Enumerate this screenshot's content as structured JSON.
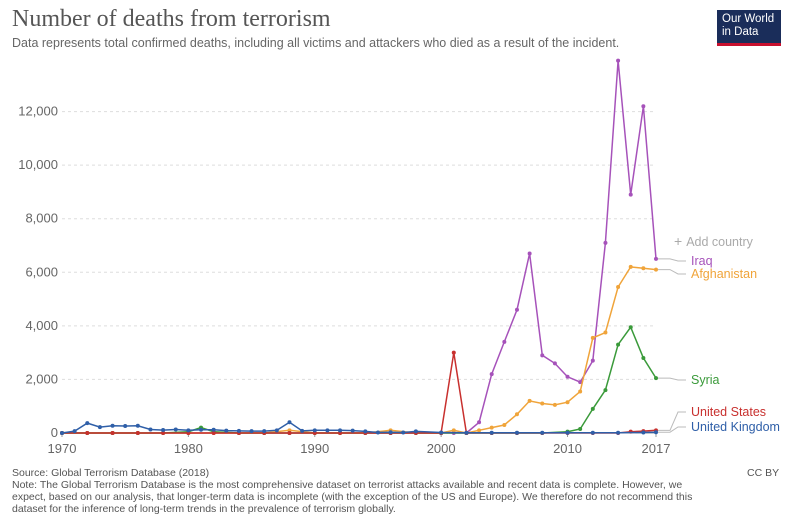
{
  "header": {
    "title": "Number of deaths from terrorism",
    "subtitle": "Data represents total confirmed deaths, including all victims and attackers who died as a result of the incident.",
    "logo_line1": "Our World",
    "logo_line2": "in Data"
  },
  "controls": {
    "add_country_icon": "plus-icon",
    "add_country_label": "Add country"
  },
  "footer": {
    "source": "Source: Global Terrorism Database (2018)",
    "note": "Note: The Global Terrorism Database is the most comprehensive dataset on terrorist attacks available and recent data is complete. However, we expect, based on our analysis, that longer-term data is incomplete (with the exception of the US and Europe). We therefore do not recommend this dataset for the inference of long-term trends in the prevalence of terrorism globally.",
    "license": "CC BY"
  },
  "chart_data": {
    "type": "line",
    "title": "Number of deaths from terrorism",
    "xlim": [
      1970,
      2017
    ],
    "ylim": [
      0,
      14000
    ],
    "x_ticks": [
      1970,
      1980,
      1990,
      2000,
      2010,
      2017
    ],
    "x_tick_labels": [
      "1970",
      "1980",
      "1990",
      "2000",
      "2010",
      "2017"
    ],
    "y_ticks": [
      0,
      2000,
      4000,
      6000,
      8000,
      10000,
      12000
    ],
    "y_tick_labels": [
      "0",
      "2,000",
      "4,000",
      "6,000",
      "8,000",
      "10,000",
      "12,000"
    ],
    "grid": "horizontal dashed",
    "legend": "right, end labels",
    "series": [
      {
        "name": "Iraq",
        "color": "#a652ba",
        "x": [
          1970,
          1972,
          1974,
          1976,
          1978,
          1980,
          1982,
          1984,
          1986,
          1988,
          1990,
          1992,
          1994,
          1996,
          1998,
          2000,
          2001,
          2002,
          2003,
          2004,
          2005,
          2006,
          2007,
          2008,
          2009,
          2010,
          2011,
          2012,
          2013,
          2014,
          2015,
          2016,
          2017
        ],
        "y": [
          0,
          0,
          0,
          0,
          0,
          0,
          0,
          0,
          0,
          0,
          0,
          0,
          0,
          0,
          0,
          0,
          0,
          0,
          400,
          2200,
          3400,
          4600,
          6700,
          2900,
          2600,
          2100,
          1900,
          2700,
          7100,
          13900,
          8900,
          12200,
          6500
        ]
      },
      {
        "name": "Afghanistan",
        "color": "#f0a43a",
        "x": [
          1970,
          1972,
          1974,
          1976,
          1978,
          1980,
          1982,
          1984,
          1986,
          1988,
          1990,
          1992,
          1994,
          1996,
          1998,
          2000,
          2001,
          2002,
          2003,
          2004,
          2005,
          2006,
          2007,
          2008,
          2009,
          2010,
          2011,
          2012,
          2013,
          2014,
          2015,
          2016,
          2017
        ],
        "y": [
          0,
          0,
          0,
          0,
          0,
          0,
          0,
          0,
          0,
          100,
          0,
          0,
          0,
          100,
          0,
          0,
          100,
          0,
          100,
          200,
          300,
          700,
          1200,
          1100,
          1050,
          1150,
          1550,
          3550,
          3750,
          5450,
          6200,
          6150,
          6100
        ]
      },
      {
        "name": "Syria",
        "color": "#3a9a3a",
        "x": [
          1970,
          1972,
          1974,
          1976,
          1978,
          1980,
          1981,
          1982,
          1984,
          1986,
          1988,
          1990,
          1992,
          1994,
          1996,
          1998,
          2000,
          2002,
          2004,
          2006,
          2008,
          2010,
          2011,
          2012,
          2013,
          2014,
          2015,
          2016,
          2017
        ],
        "y": [
          0,
          0,
          0,
          0,
          0,
          50,
          200,
          50,
          0,
          0,
          0,
          0,
          0,
          0,
          0,
          0,
          0,
          0,
          0,
          0,
          0,
          50,
          150,
          900,
          1600,
          3300,
          3950,
          2800,
          2050
        ]
      },
      {
        "name": "United States",
        "color": "#c8302e",
        "x": [
          1970,
          1972,
          1974,
          1976,
          1978,
          1980,
          1982,
          1984,
          1986,
          1988,
          1990,
          1992,
          1994,
          1996,
          1998,
          2000,
          2001,
          2002,
          2004,
          2006,
          2008,
          2010,
          2012,
          2014,
          2015,
          2016,
          2017
        ],
        "y": [
          0,
          0,
          0,
          0,
          0,
          0,
          0,
          0,
          0,
          0,
          0,
          0,
          0,
          0,
          0,
          0,
          3000,
          0,
          0,
          0,
          0,
          0,
          0,
          0,
          50,
          70,
          100
        ]
      },
      {
        "name": "United Kingdom",
        "color": "#2f5fa8",
        "x": [
          1970,
          1971,
          1972,
          1973,
          1974,
          1975,
          1976,
          1977,
          1978,
          1979,
          1980,
          1981,
          1982,
          1983,
          1984,
          1985,
          1986,
          1987,
          1988,
          1989,
          1990,
          1991,
          1992,
          1993,
          1994,
          1995,
          1996,
          1997,
          1998,
          2000,
          2002,
          2004,
          2006,
          2008,
          2010,
          2012,
          2014,
          2016,
          2017
        ],
        "y": [
          0,
          70,
          370,
          220,
          270,
          260,
          270,
          130,
          110,
          130,
          100,
          120,
          120,
          90,
          80,
          70,
          70,
          100,
          400,
          80,
          100,
          100,
          100,
          90,
          60,
          20,
          30,
          20,
          60,
          20,
          10,
          10,
          10,
          10,
          10,
          10,
          10,
          20,
          30
        ]
      }
    ]
  }
}
